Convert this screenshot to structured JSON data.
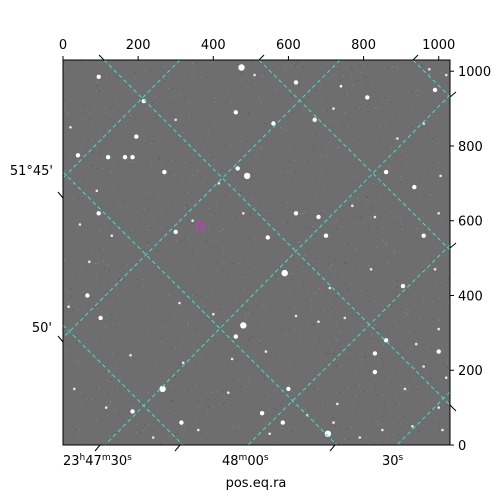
{
  "chart_data": {
    "type": "scatter",
    "title": "",
    "xlabel": "pos.eq.ra",
    "ylabel": "",
    "pixel_axes": {
      "x_range": [
        0,
        1030
      ],
      "y_range": [
        0,
        1030
      ],
      "x_ticks": [
        0,
        200,
        400,
        600,
        800,
        1000
      ],
      "y_ticks": [
        0,
        200,
        400,
        600,
        800,
        1000
      ],
      "x_tick_labels": [
        "0",
        "200",
        "400",
        "600",
        "800",
        "1000"
      ],
      "y_tick_labels": [
        "0",
        "200",
        "400",
        "600",
        "800",
        "1000"
      ]
    },
    "world_axes": {
      "ra_tick_labels": [
        {
          "h": "23",
          "hu": "h",
          "m": "47",
          "mu": "m",
          "s": "30",
          "su": "s"
        },
        {
          "h": "",
          "hu": "",
          "m": "48",
          "mu": "m",
          "s": "00",
          "su": "s"
        },
        {
          "h": "",
          "hu": "",
          "m": "",
          "mu": "",
          "s": "30",
          "su": "s"
        }
      ],
      "dec_tick_labels": [
        "51°45'",
        "50'"
      ]
    },
    "grid": true,
    "grid_color": "#40e0d0",
    "image_background": "#6e6e6e",
    "marker": {
      "x": 365,
      "y": 585,
      "color": "#cc33cc",
      "shape": "circle"
    },
    "stars": [
      {
        "x": 475,
        "y": 1010,
        "b": 3
      },
      {
        "x": 620,
        "y": 970,
        "b": 2
      },
      {
        "x": 740,
        "y": 960,
        "b": 4
      },
      {
        "x": 95,
        "y": 985,
        "b": 2
      },
      {
        "x": 215,
        "y": 920,
        "b": 2
      },
      {
        "x": 510,
        "y": 990,
        "b": 1
      },
      {
        "x": 810,
        "y": 930,
        "b": 2
      },
      {
        "x": 975,
        "y": 1005,
        "b": 1
      },
      {
        "x": 990,
        "y": 950,
        "b": 2
      },
      {
        "x": 1020,
        "y": 990,
        "b": 1
      },
      {
        "x": 460,
        "y": 890,
        "b": 2
      },
      {
        "x": 560,
        "y": 860,
        "b": 2
      },
      {
        "x": 195,
        "y": 825,
        "b": 2
      },
      {
        "x": 300,
        "y": 870,
        "b": 1
      },
      {
        "x": 670,
        "y": 870,
        "b": 2
      },
      {
        "x": 720,
        "y": 900,
        "b": 1
      },
      {
        "x": 890,
        "y": 820,
        "b": 1
      },
      {
        "x": 960,
        "y": 860,
        "b": 1
      },
      {
        "x": 40,
        "y": 775,
        "b": 2
      },
      {
        "x": 120,
        "y": 770,
        "b": 2
      },
      {
        "x": 165,
        "y": 770,
        "b": 2
      },
      {
        "x": 185,
        "y": 770,
        "b": 2
      },
      {
        "x": 270,
        "y": 730,
        "b": 2
      },
      {
        "x": 465,
        "y": 740,
        "b": 2
      },
      {
        "x": 490,
        "y": 720,
        "b": 3
      },
      {
        "x": 860,
        "y": 730,
        "b": 2
      },
      {
        "x": 935,
        "y": 690,
        "b": 2
      },
      {
        "x": 1005,
        "y": 720,
        "b": 1
      },
      {
        "x": 20,
        "y": 850,
        "b": 1
      },
      {
        "x": 90,
        "y": 680,
        "b": 1
      },
      {
        "x": 415,
        "y": 700,
        "b": 1
      },
      {
        "x": 480,
        "y": 620,
        "b": 1
      },
      {
        "x": 95,
        "y": 620,
        "b": 2
      },
      {
        "x": 300,
        "y": 570,
        "b": 2
      },
      {
        "x": 345,
        "y": 600,
        "b": 1
      },
      {
        "x": 545,
        "y": 555,
        "b": 2
      },
      {
        "x": 620,
        "y": 620,
        "b": 2
      },
      {
        "x": 680,
        "y": 610,
        "b": 2
      },
      {
        "x": 700,
        "y": 560,
        "b": 2
      },
      {
        "x": 770,
        "y": 640,
        "b": 1
      },
      {
        "x": 830,
        "y": 610,
        "b": 1
      },
      {
        "x": 960,
        "y": 560,
        "b": 2
      },
      {
        "x": 1000,
        "y": 620,
        "b": 1
      },
      {
        "x": 45,
        "y": 590,
        "b": 1
      },
      {
        "x": 130,
        "y": 560,
        "b": 1
      },
      {
        "x": 70,
        "y": 490,
        "b": 1
      },
      {
        "x": 590,
        "y": 460,
        "b": 3
      },
      {
        "x": 710,
        "y": 420,
        "b": 1
      },
      {
        "x": 820,
        "y": 470,
        "b": 1
      },
      {
        "x": 905,
        "y": 425,
        "b": 2
      },
      {
        "x": 990,
        "y": 470,
        "b": 1
      },
      {
        "x": 65,
        "y": 400,
        "b": 2
      },
      {
        "x": 15,
        "y": 370,
        "b": 1
      },
      {
        "x": 100,
        "y": 340,
        "b": 2
      },
      {
        "x": 310,
        "y": 380,
        "b": 1
      },
      {
        "x": 400,
        "y": 350,
        "b": 1
      },
      {
        "x": 480,
        "y": 320,
        "b": 3
      },
      {
        "x": 460,
        "y": 290,
        "b": 2
      },
      {
        "x": 620,
        "y": 345,
        "b": 1
      },
      {
        "x": 680,
        "y": 330,
        "b": 1
      },
      {
        "x": 750,
        "y": 340,
        "b": 1
      },
      {
        "x": 860,
        "y": 280,
        "b": 2
      },
      {
        "x": 940,
        "y": 270,
        "b": 1
      },
      {
        "x": 1000,
        "y": 310,
        "b": 1
      },
      {
        "x": 180,
        "y": 240,
        "b": 1
      },
      {
        "x": 320,
        "y": 220,
        "b": 1
      },
      {
        "x": 450,
        "y": 230,
        "b": 1
      },
      {
        "x": 540,
        "y": 250,
        "b": 1
      },
      {
        "x": 830,
        "y": 245,
        "b": 2
      },
      {
        "x": 1000,
        "y": 250,
        "b": 2
      },
      {
        "x": 960,
        "y": 210,
        "b": 1
      },
      {
        "x": 830,
        "y": 195,
        "b": 2
      },
      {
        "x": 1020,
        "y": 180,
        "b": 1
      },
      {
        "x": 30,
        "y": 150,
        "b": 1
      },
      {
        "x": 265,
        "y": 150,
        "b": 3
      },
      {
        "x": 440,
        "y": 140,
        "b": 1
      },
      {
        "x": 600,
        "y": 150,
        "b": 2
      },
      {
        "x": 730,
        "y": 110,
        "b": 1
      },
      {
        "x": 910,
        "y": 150,
        "b": 1
      },
      {
        "x": 1000,
        "y": 100,
        "b": 1
      },
      {
        "x": 115,
        "y": 100,
        "b": 1
      },
      {
        "x": 185,
        "y": 90,
        "b": 2
      },
      {
        "x": 315,
        "y": 60,
        "b": 2
      },
      {
        "x": 530,
        "y": 85,
        "b": 2
      },
      {
        "x": 585,
        "y": 60,
        "b": 2
      },
      {
        "x": 650,
        "y": 80,
        "b": 1
      },
      {
        "x": 705,
        "y": 30,
        "b": 3
      },
      {
        "x": 850,
        "y": 40,
        "b": 1
      },
      {
        "x": 720,
        "y": 60,
        "b": 1
      },
      {
        "x": 930,
        "y": 50,
        "b": 1
      },
      {
        "x": 240,
        "y": 20,
        "b": 1
      },
      {
        "x": 360,
        "y": 40,
        "b": 1
      },
      {
        "x": 790,
        "y": 20,
        "b": 1
      },
      {
        "x": 550,
        "y": 30,
        "b": 1
      },
      {
        "x": 1010,
        "y": 40,
        "b": 1
      }
    ]
  }
}
